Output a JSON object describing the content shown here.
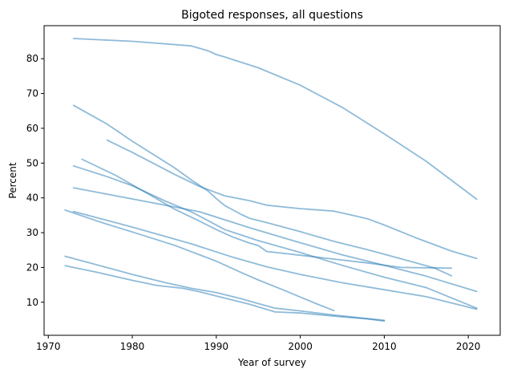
{
  "chart_data": {
    "type": "line",
    "title": "Bigoted responses, all questions",
    "xlabel": "Year of survey",
    "ylabel": "Percent",
    "xlim": [
      1969.5,
      2023.8
    ],
    "ylim": [
      0.5,
      89.5
    ],
    "xticks": [
      1970,
      1980,
      1990,
      2000,
      2010,
      2020
    ],
    "yticks": [
      10,
      20,
      30,
      40,
      50,
      60,
      70,
      80
    ],
    "grid": false,
    "legend": "none",
    "line_color": "#1f77b4",
    "line_opacity": 0.5,
    "series": [
      {
        "points": [
          [
            1973,
            85.8
          ],
          [
            1980,
            85.0
          ],
          [
            1987,
            83.7
          ],
          [
            1989,
            82.3
          ],
          [
            1990,
            81.2
          ],
          [
            1991,
            80.5
          ],
          [
            1995,
            77.4
          ],
          [
            2000,
            72.4
          ],
          [
            2005,
            66.0
          ],
          [
            2010,
            58.4
          ],
          [
            2015,
            50.5
          ],
          [
            2021,
            39.6
          ]
        ]
      },
      {
        "points": [
          [
            1973,
            66.6
          ],
          [
            1977,
            61.2
          ],
          [
            1980,
            56.3
          ],
          [
            1985,
            48.7
          ],
          [
            1987,
            45.2
          ],
          [
            1989,
            42.0
          ],
          [
            1990,
            39.8
          ],
          [
            1991,
            37.8
          ],
          [
            1993,
            35.2
          ],
          [
            1994,
            34.1
          ],
          [
            1996,
            32.9
          ],
          [
            2000,
            30.3
          ],
          [
            2004,
            27.5
          ],
          [
            2008,
            25.1
          ],
          [
            2012,
            22.5
          ],
          [
            2016,
            19.8
          ],
          [
            2018,
            17.6
          ]
        ]
      },
      {
        "points": [
          [
            1977,
            56.6
          ],
          [
            1980,
            53.1
          ],
          [
            1985,
            46.8
          ],
          [
            1988,
            43.3
          ],
          [
            1991,
            40.6
          ],
          [
            1994,
            39.2
          ],
          [
            1996,
            37.9
          ],
          [
            2000,
            36.9
          ],
          [
            2004,
            36.2
          ],
          [
            2006,
            35.1
          ],
          [
            2008,
            34.0
          ],
          [
            2010,
            32.2
          ],
          [
            2014,
            28.3
          ],
          [
            2018,
            24.7
          ],
          [
            2021,
            22.6
          ]
        ]
      },
      {
        "points": [
          [
            1974,
            51.1
          ],
          [
            1978,
            46.5
          ],
          [
            1982,
            41.0
          ],
          [
            1985,
            36.8
          ],
          [
            1988,
            33.3
          ],
          [
            1990,
            30.9
          ],
          [
            1992,
            28.7
          ],
          [
            1994,
            27.0
          ],
          [
            1995,
            26.3
          ],
          [
            1996,
            24.6
          ],
          [
            2000,
            23.5
          ],
          [
            2004,
            22.4
          ],
          [
            2008,
            21.3
          ],
          [
            2012,
            20.0
          ],
          [
            2018,
            19.8
          ]
        ]
      },
      {
        "points": [
          [
            1973,
            49.2
          ],
          [
            1977,
            46.1
          ],
          [
            1980,
            43.5
          ],
          [
            1984,
            39.0
          ],
          [
            1987,
            36.0
          ],
          [
            1989,
            33.5
          ],
          [
            1991,
            30.9
          ],
          [
            1993,
            29.3
          ],
          [
            1995,
            27.7
          ],
          [
            2000,
            24.3
          ],
          [
            2005,
            20.6
          ],
          [
            2010,
            17.2
          ],
          [
            2015,
            14.2
          ],
          [
            2021,
            8.3
          ]
        ]
      },
      {
        "points": [
          [
            1973,
            42.9
          ],
          [
            1980,
            39.7
          ],
          [
            1988,
            36.0
          ],
          [
            1994,
            31.4
          ],
          [
            2000,
            27.1
          ],
          [
            2005,
            23.6
          ],
          [
            2010,
            20.6
          ],
          [
            2015,
            17.5
          ],
          [
            2021,
            13.1
          ]
        ]
      },
      {
        "points": [
          [
            1972,
            36.5
          ],
          [
            1976,
            33.2
          ],
          [
            1980,
            30.2
          ],
          [
            1985,
            26.4
          ],
          [
            1990,
            21.8
          ],
          [
            1993,
            18.5
          ],
          [
            1995,
            16.4
          ],
          [
            1998,
            13.5
          ],
          [
            2000,
            11.5
          ],
          [
            2002,
            9.5
          ],
          [
            2004,
            7.6
          ]
        ]
      },
      {
        "points": [
          [
            1973,
            36.1
          ],
          [
            1980,
            31.6
          ],
          [
            1987,
            26.8
          ],
          [
            1992,
            22.9
          ],
          [
            1996,
            20.2
          ],
          [
            2000,
            18.0
          ],
          [
            2005,
            15.6
          ],
          [
            2010,
            13.6
          ],
          [
            2015,
            11.6
          ],
          [
            2021,
            8.0
          ]
        ]
      },
      {
        "points": [
          [
            1972,
            23.2
          ],
          [
            1976,
            20.6
          ],
          [
            1980,
            18.0
          ],
          [
            1984,
            15.6
          ],
          [
            1987,
            14.0
          ],
          [
            1990,
            12.8
          ],
          [
            1993,
            11.0
          ],
          [
            1995,
            9.6
          ],
          [
            1997,
            8.3
          ],
          [
            2000,
            7.5
          ],
          [
            2004,
            6.3
          ],
          [
            2008,
            5.3
          ],
          [
            2010,
            4.8
          ]
        ]
      },
      {
        "points": [
          [
            1972,
            20.5
          ],
          [
            1976,
            18.5
          ],
          [
            1980,
            16.3
          ],
          [
            1983,
            14.8
          ],
          [
            1986,
            14.0
          ],
          [
            1988,
            13.0
          ],
          [
            1990,
            11.8
          ],
          [
            1994,
            9.4
          ],
          [
            1997,
            7.2
          ],
          [
            2000,
            6.9
          ],
          [
            2004,
            6.0
          ],
          [
            2008,
            5.2
          ],
          [
            2010,
            4.6
          ]
        ]
      }
    ]
  }
}
